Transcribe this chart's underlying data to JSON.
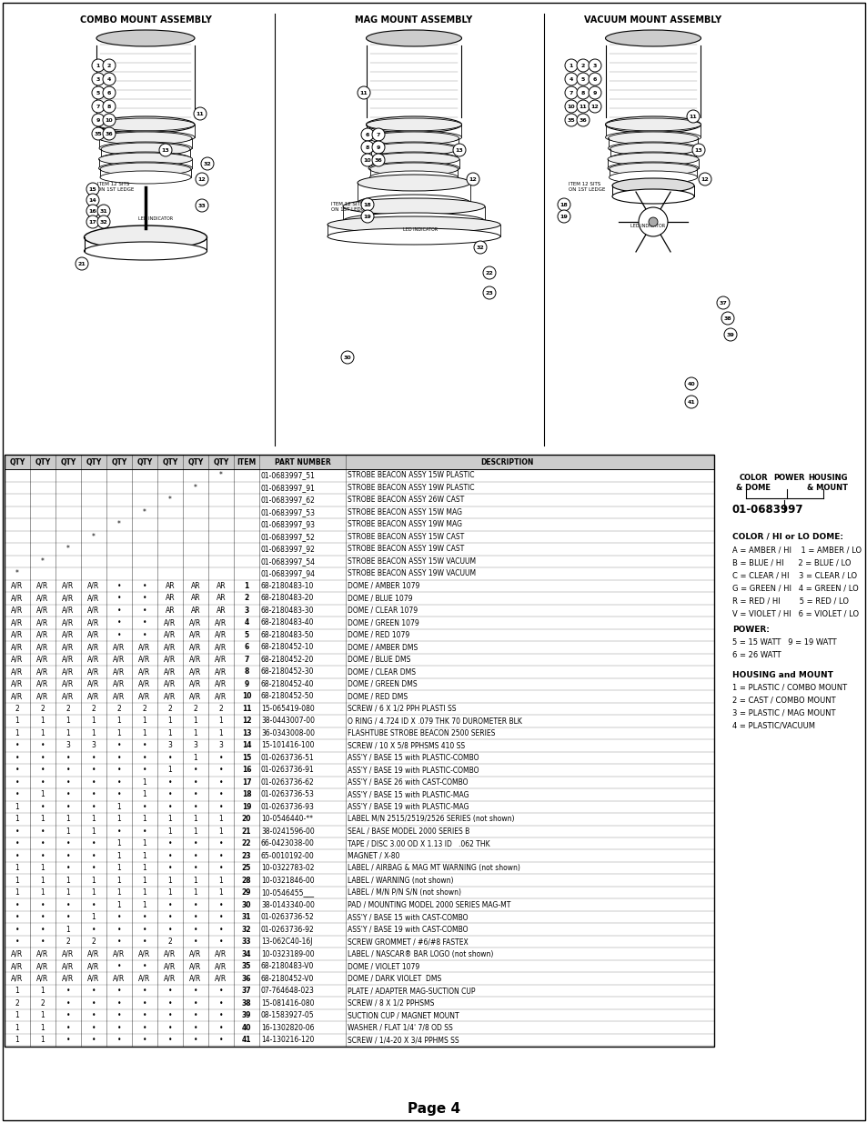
{
  "title": "Page 4",
  "bg_color": "#ffffff",
  "diagram_titles": [
    "COMBO MOUNT ASSEMBLY",
    "MAG MOUNT ASSEMBLY",
    "VACUUM MOUNT ASSEMBLY"
  ],
  "table_headers": [
    "QTY",
    "QTY",
    "QTY",
    "QTY",
    "QTY",
    "QTY",
    "QTY",
    "QTY",
    "QTY",
    "ITEM",
    "PART NUMBER",
    "DESCRIPTION"
  ],
  "table_rows": [
    [
      "",
      "",
      "",
      "",
      "",
      "",
      "",
      "",
      "*",
      "",
      "01-0683997_51",
      "STROBE BEACON ASSY 15W PLASTIC"
    ],
    [
      "",
      "",
      "",
      "",
      "",
      "",
      "",
      "*",
      "",
      "",
      "01-0683997_91",
      "STROBE BEACON ASSY 19W PLASTIC"
    ],
    [
      "",
      "",
      "",
      "",
      "",
      "",
      "*",
      "",
      "",
      "",
      "01-0683997_62",
      "STROBE BEACON ASSY 26W CAST"
    ],
    [
      "",
      "",
      "",
      "",
      "",
      "*",
      "",
      "",
      "",
      "",
      "01-0683997_53",
      "STROBE BEACON ASSY 15W MAG"
    ],
    [
      "",
      "",
      "",
      "",
      "*",
      "",
      "",
      "",
      "",
      "",
      "01-0683997_93",
      "STROBE BEACON ASSY 19W MAG"
    ],
    [
      "",
      "",
      "",
      "*",
      "",
      "",
      "",
      "",
      "",
      "",
      "01-0683997_52",
      "STROBE BEACON ASSY 15W CAST"
    ],
    [
      "",
      "",
      "*",
      "",
      "",
      "",
      "",
      "",
      "",
      "",
      "01-0683997_92",
      "STROBE BEACON ASSY 19W CAST"
    ],
    [
      "",
      "*",
      "",
      "",
      "",
      "",
      "",
      "",
      "",
      "",
      "01-0683997_54",
      "STROBE BEACON ASSY 15W VACUUM"
    ],
    [
      "*",
      "",
      "",
      "",
      "",
      "",
      "",
      "",
      "",
      "",
      "01-0683997_94",
      "STROBE BEACON ASSY 19W VACUUM"
    ],
    [
      "A/R",
      "A/R",
      "A/R",
      "A/R",
      "•",
      "•",
      "AR",
      "AR",
      "AR",
      "1",
      "68-2180483-10",
      "DOME / AMBER 1079"
    ],
    [
      "A/R",
      "A/R",
      "A/R",
      "A/R",
      "•",
      "•",
      "AR",
      "AR",
      "AR",
      "2",
      "68-2180483-20",
      "DOME / BLUE 1079"
    ],
    [
      "A/R",
      "A/R",
      "A/R",
      "A/R",
      "•",
      "•",
      "AR",
      "AR",
      "AR",
      "3",
      "68-2180483-30",
      "DOME / CLEAR 1079"
    ],
    [
      "A/R",
      "A/R",
      "A/R",
      "A/R",
      "•",
      "•",
      "A/R",
      "A/R",
      "A/R",
      "4",
      "68-2180483-40",
      "DOME / GREEN 1079"
    ],
    [
      "A/R",
      "A/R",
      "A/R",
      "A/R",
      "•",
      "•",
      "A/R",
      "A/R",
      "A/R",
      "5",
      "68-2180483-50",
      "DOME / RED 1079"
    ],
    [
      "A/R",
      "A/R",
      "A/R",
      "A/R",
      "A/R",
      "A/R",
      "A/R",
      "A/R",
      "A/R",
      "6",
      "68-2180452-10",
      "DOME / AMBER DMS"
    ],
    [
      "A/R",
      "A/R",
      "A/R",
      "A/R",
      "A/R",
      "A/R",
      "A/R",
      "A/R",
      "A/R",
      "7",
      "68-2180452-20",
      "DOME / BLUE DMS"
    ],
    [
      "A/R",
      "A/R",
      "A/R",
      "A/R",
      "A/R",
      "A/R",
      "A/R",
      "A/R",
      "A/R",
      "8",
      "68-2180452-30",
      "DOME / CLEAR DMS"
    ],
    [
      "A/R",
      "A/R",
      "A/R",
      "A/R",
      "A/R",
      "A/R",
      "A/R",
      "A/R",
      "A/R",
      "9",
      "68-2180452-40",
      "DOME / GREEN DMS"
    ],
    [
      "A/R",
      "A/R",
      "A/R",
      "A/R",
      "A/R",
      "A/R",
      "A/R",
      "A/R",
      "A/R",
      "10",
      "68-2180452-50",
      "DOME / RED DMS"
    ],
    [
      "2",
      "2",
      "2",
      "2",
      "2",
      "2",
      "2",
      "2",
      "2",
      "11",
      "15-065419-080",
      "SCREW / 6 X 1/2 PPH PLASTI SS"
    ],
    [
      "1",
      "1",
      "1",
      "1",
      "1",
      "1",
      "1",
      "1",
      "1",
      "12",
      "38-0443007-00",
      "O RING / 4.724 ID X .079 THK 70 DUROMETER BLK"
    ],
    [
      "1",
      "1",
      "1",
      "1",
      "1",
      "1",
      "1",
      "1",
      "1",
      "13",
      "36-0343008-00",
      "FLASHTUBE STROBE BEACON 2500 SERIES"
    ],
    [
      "•",
      "•",
      "3",
      "3",
      "•",
      "•",
      "3",
      "3",
      "3",
      "14",
      "15-101416-100",
      "SCREW / 10 X 5/8 PPHSMS 410 SS"
    ],
    [
      "•",
      "•",
      "•",
      "•",
      "•",
      "•",
      "•",
      "1",
      "•",
      "15",
      "01-0263736-51",
      "ASS'Y / BASE 15 with PLASTIC-COMBO"
    ],
    [
      "•",
      "•",
      "•",
      "•",
      "•",
      "•",
      "1",
      "•",
      "•",
      "16",
      "01-0263736-91",
      "ASS'Y / BASE 19 with PLASTIC-COMBO"
    ],
    [
      "•",
      "•",
      "•",
      "•",
      "•",
      "1",
      "•",
      "•",
      "•",
      "17",
      "01-0263736-62",
      "ASS'Y / BASE 26 with CAST-COMBO"
    ],
    [
      "•",
      "1",
      "•",
      "•",
      "•",
      "1",
      "•",
      "•",
      "•",
      "18",
      "01-0263736-53",
      "ASS'Y / BASE 15 with PLASTIC-MAG"
    ],
    [
      "1",
      "•",
      "•",
      "•",
      "1",
      "•",
      "•",
      "•",
      "•",
      "19",
      "01-0263736-93",
      "ASS'Y / BASE 19 with PLASTIC-MAG"
    ],
    [
      "1",
      "1",
      "1",
      "1",
      "1",
      "1",
      "1",
      "1",
      "1",
      "20",
      "10-0546440-**",
      "LABEL M/N 2515/2519/2526 SERIES (not shown)"
    ],
    [
      "•",
      "•",
      "1",
      "1",
      "•",
      "•",
      "1",
      "1",
      "1",
      "21",
      "38-0241596-00",
      "SEAL / BASE MODEL 2000 SERIES B"
    ],
    [
      "•",
      "•",
      "•",
      "•",
      "1",
      "1",
      "•",
      "•",
      "•",
      "22",
      "66-0423038-00",
      "TAPE / DISC 3.00 OD X 1.13 ID   .062 THK"
    ],
    [
      "•",
      "•",
      "•",
      "•",
      "1",
      "1",
      "•",
      "•",
      "•",
      "23",
      "65-0010192-00",
      "MAGNET / X-80"
    ],
    [
      "1",
      "1",
      "•",
      "•",
      "1",
      "1",
      "•",
      "•",
      "•",
      "25",
      "10-0322783-02",
      "LABEL / AIRBAG & MAG MT WARNING (not shown)"
    ],
    [
      "1",
      "1",
      "1",
      "1",
      "1",
      "1",
      "1",
      "1",
      "1",
      "28",
      "10-0321846-00",
      "LABEL / WARNING (not shown)"
    ],
    [
      "1",
      "1",
      "1",
      "1",
      "1",
      "1",
      "1",
      "1",
      "1",
      "29",
      "10-0546455___",
      "LABEL / M/N P/N S/N (not shown)"
    ],
    [
      "•",
      "•",
      "•",
      "•",
      "1",
      "1",
      "•",
      "•",
      "•",
      "30",
      "38-0143340-00",
      "PAD / MOUNTING MODEL 2000 SERIES MAG-MT"
    ],
    [
      "•",
      "•",
      "•",
      "1",
      "•",
      "•",
      "•",
      "•",
      "•",
      "31",
      "01-0263736-52",
      "ASS'Y / BASE 15 with CAST-COMBO"
    ],
    [
      "•",
      "•",
      "1",
      "•",
      "•",
      "•",
      "•",
      "•",
      "•",
      "32",
      "01-0263736-92",
      "ASS'Y / BASE 19 with CAST-COMBO"
    ],
    [
      "•",
      "•",
      "2",
      "2",
      "•",
      "•",
      "2",
      "•",
      "•",
      "33",
      "13-062C40-16J",
      "SCREW GROMMET / #6/#8 FASTEX"
    ],
    [
      "A/R",
      "A/R",
      "A/R",
      "A/R",
      "A/R",
      "A/R",
      "A/R",
      "A/R",
      "A/R",
      "34",
      "10-0323189-00",
      "LABEL / NASCAR® BAR LOGO (not shown)"
    ],
    [
      "A/R",
      "A/R",
      "A/R",
      "A/R",
      "•",
      "•",
      "A/R",
      "A/R",
      "A/R",
      "35",
      "68-2180483-V0",
      "DOME / VIOLET 1079"
    ],
    [
      "A/R",
      "A/R",
      "A/R",
      "A/R",
      "A/R",
      "A/R",
      "A/R",
      "A/R",
      "A/R",
      "36",
      "68-2180452-V0",
      "DOME / DARK VIOLET  DMS"
    ],
    [
      "1",
      "1",
      "•",
      "•",
      "•",
      "•",
      "•",
      "•",
      "•",
      "37",
      "07-764648-023",
      "PLATE / ADAPTER MAG-SUCTION CUP"
    ],
    [
      "2",
      "2",
      "•",
      "•",
      "•",
      "•",
      "•",
      "•",
      "•",
      "38",
      "15-081416-080",
      "SCREW / 8 X 1/2 PPHSMS"
    ],
    [
      "1",
      "1",
      "•",
      "•",
      "•",
      "•",
      "•",
      "•",
      "•",
      "39",
      "08-1583927-05",
      "SUCTION CUP / MAGNET MOUNT"
    ],
    [
      "1",
      "1",
      "•",
      "•",
      "•",
      "•",
      "•",
      "•",
      "•",
      "40",
      "16-1302820-06",
      "WASHER / FLAT 1/4' 7/8 OD SS"
    ],
    [
      "1",
      "1",
      "•",
      "•",
      "•",
      "•",
      "•",
      "•",
      "•",
      "41",
      "14-130216-120",
      "SCREW / 1/4-20 X 3/4 PPHMS SS"
    ]
  ],
  "color_codes": [
    "A = AMBER / HI    1 = AMBER / LO",
    "B = BLUE / HI      2 = BLUE / LO",
    "C = CLEAR / HI    3 = CLEAR / LO",
    "G = GREEN / HI   4 = GREEN / LO",
    "R = RED / HI        5 = RED / LO",
    "V = VIOLET / HI   6 = VIOLET / LO"
  ],
  "power_codes": [
    "5 = 15 WATT   9 = 19 WATT",
    "6 = 26 WATT"
  ],
  "housing_codes": [
    "1 = PLASTIC / COMBO MOUNT",
    "2 = CAST / COMBO MOUNT",
    "3 = PLASTIC / MAG MOUNT",
    "4 = PLASTIC/VACUUM"
  ]
}
